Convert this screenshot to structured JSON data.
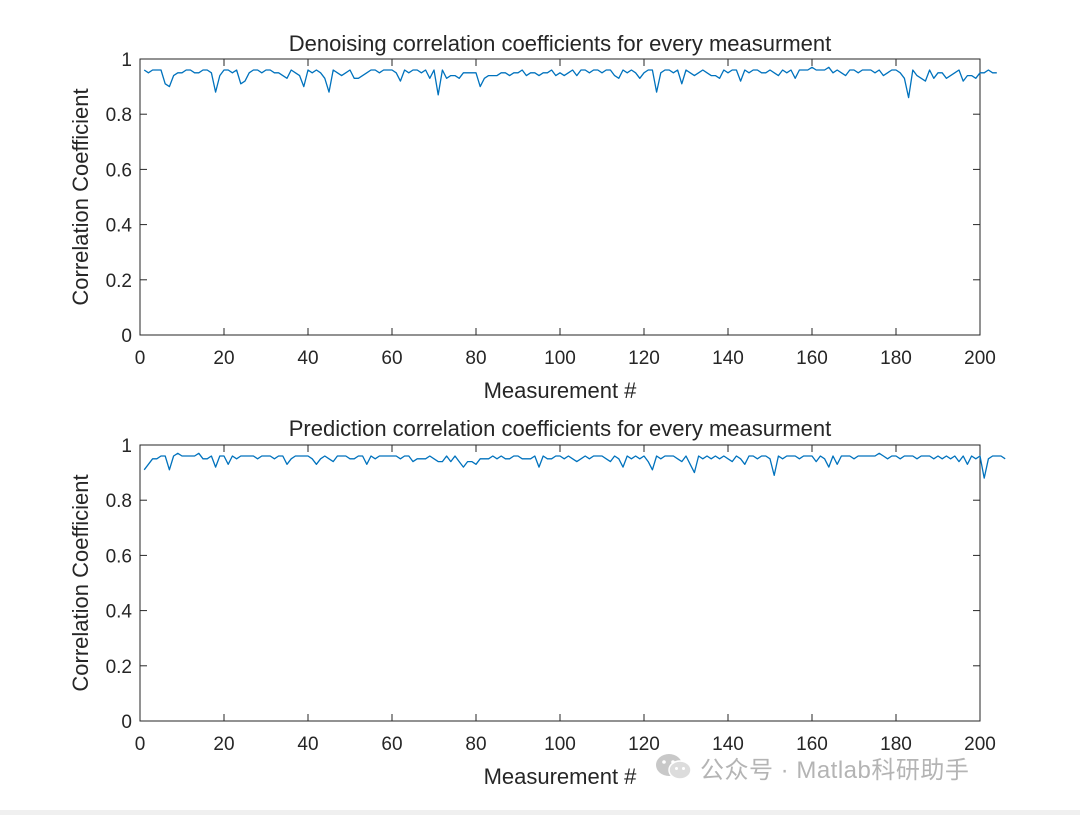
{
  "chart_data": [
    {
      "type": "line",
      "title": "Denoising correlation coefficients for every measurment",
      "xlabel": "Measurement #",
      "ylabel": "Correlation Coefficient",
      "xlim": [
        0,
        200
      ],
      "ylim": [
        0,
        1
      ],
      "xticks": [
        0,
        20,
        40,
        60,
        80,
        100,
        120,
        140,
        160,
        180,
        200
      ],
      "yticks": [
        0,
        0.2,
        0.4,
        0.6,
        0.8,
        1
      ],
      "ytick_labels": [
        "0",
        "0.2",
        "0.4",
        "0.6",
        "0.8",
        "1"
      ],
      "grid": false,
      "series": [
        {
          "name": "Denoising",
          "color": "#0072BD",
          "x_start": 1,
          "values": [
            0.96,
            0.95,
            0.96,
            0.96,
            0.96,
            0.91,
            0.9,
            0.94,
            0.95,
            0.95,
            0.96,
            0.96,
            0.95,
            0.95,
            0.96,
            0.96,
            0.95,
            0.88,
            0.94,
            0.96,
            0.96,
            0.95,
            0.96,
            0.91,
            0.92,
            0.95,
            0.96,
            0.96,
            0.95,
            0.96,
            0.96,
            0.95,
            0.95,
            0.94,
            0.93,
            0.96,
            0.95,
            0.94,
            0.9,
            0.96,
            0.95,
            0.96,
            0.95,
            0.93,
            0.88,
            0.96,
            0.95,
            0.94,
            0.95,
            0.96,
            0.93,
            0.93,
            0.94,
            0.95,
            0.96,
            0.96,
            0.95,
            0.96,
            0.96,
            0.96,
            0.95,
            0.92,
            0.96,
            0.95,
            0.96,
            0.96,
            0.95,
            0.96,
            0.93,
            0.96,
            0.87,
            0.96,
            0.93,
            0.94,
            0.94,
            0.93,
            0.95,
            0.95,
            0.95,
            0.95,
            0.9,
            0.93,
            0.94,
            0.94,
            0.94,
            0.95,
            0.95,
            0.94,
            0.95,
            0.95,
            0.96,
            0.94,
            0.95,
            0.95,
            0.94,
            0.95,
            0.95,
            0.96,
            0.94,
            0.95,
            0.94,
            0.95,
            0.96,
            0.94,
            0.96,
            0.96,
            0.95,
            0.96,
            0.96,
            0.95,
            0.96,
            0.96,
            0.94,
            0.93,
            0.96,
            0.95,
            0.96,
            0.95,
            0.93,
            0.95,
            0.96,
            0.96,
            0.88,
            0.95,
            0.96,
            0.96,
            0.95,
            0.96,
            0.91,
            0.96,
            0.95,
            0.94,
            0.95,
            0.96,
            0.95,
            0.94,
            0.94,
            0.93,
            0.96,
            0.95,
            0.96,
            0.96,
            0.92,
            0.96,
            0.95,
            0.96,
            0.96,
            0.95,
            0.95,
            0.96,
            0.95,
            0.94,
            0.96,
            0.95,
            0.96,
            0.93,
            0.96,
            0.96,
            0.96,
            0.97,
            0.96,
            0.96,
            0.96,
            0.97,
            0.95,
            0.96,
            0.95,
            0.94,
            0.96,
            0.96,
            0.95,
            0.96,
            0.96,
            0.96,
            0.95,
            0.96,
            0.94,
            0.95,
            0.96,
            0.96,
            0.95,
            0.93,
            0.86,
            0.96,
            0.94,
            0.93,
            0.92,
            0.96,
            0.93,
            0.95,
            0.95,
            0.93,
            0.94,
            0.95,
            0.96,
            0.92,
            0.94,
            0.94,
            0.93,
            0.95,
            0.95,
            0.96,
            0.95,
            0.95
          ]
        }
      ]
    },
    {
      "type": "line",
      "title": "Prediction correlation coefficients for every measurment",
      "xlabel": "Measurement #",
      "ylabel": "Correlation Coefficient",
      "xlim": [
        0,
        200
      ],
      "ylim": [
        0,
        1
      ],
      "xticks": [
        0,
        20,
        40,
        60,
        80,
        100,
        120,
        140,
        160,
        180,
        200
      ],
      "yticks": [
        0,
        0.2,
        0.4,
        0.6,
        0.8,
        1
      ],
      "ytick_labels": [
        "0",
        "0.2",
        "0.4",
        "0.6",
        "0.8",
        "1"
      ],
      "grid": false,
      "series": [
        {
          "name": "Prediction",
          "color": "#0072BD",
          "x_start": 1,
          "values": [
            0.91,
            0.93,
            0.95,
            0.95,
            0.96,
            0.96,
            0.91,
            0.96,
            0.97,
            0.96,
            0.96,
            0.96,
            0.96,
            0.97,
            0.95,
            0.95,
            0.96,
            0.92,
            0.96,
            0.96,
            0.93,
            0.96,
            0.95,
            0.96,
            0.96,
            0.96,
            0.96,
            0.95,
            0.96,
            0.96,
            0.96,
            0.95,
            0.96,
            0.96,
            0.93,
            0.95,
            0.96,
            0.96,
            0.96,
            0.96,
            0.95,
            0.93,
            0.95,
            0.96,
            0.95,
            0.94,
            0.96,
            0.96,
            0.96,
            0.95,
            0.95,
            0.96,
            0.96,
            0.93,
            0.96,
            0.95,
            0.96,
            0.96,
            0.96,
            0.96,
            0.96,
            0.95,
            0.96,
            0.96,
            0.94,
            0.95,
            0.95,
            0.95,
            0.96,
            0.95,
            0.94,
            0.94,
            0.96,
            0.94,
            0.96,
            0.94,
            0.92,
            0.94,
            0.94,
            0.93,
            0.95,
            0.95,
            0.95,
            0.96,
            0.95,
            0.96,
            0.95,
            0.95,
            0.96,
            0.96,
            0.95,
            0.95,
            0.95,
            0.96,
            0.92,
            0.96,
            0.95,
            0.95,
            0.96,
            0.96,
            0.95,
            0.96,
            0.95,
            0.94,
            0.95,
            0.96,
            0.95,
            0.96,
            0.96,
            0.96,
            0.95,
            0.94,
            0.96,
            0.95,
            0.92,
            0.96,
            0.95,
            0.96,
            0.95,
            0.96,
            0.94,
            0.91,
            0.96,
            0.95,
            0.96,
            0.96,
            0.96,
            0.95,
            0.94,
            0.96,
            0.93,
            0.9,
            0.96,
            0.95,
            0.96,
            0.95,
            0.96,
            0.95,
            0.96,
            0.95,
            0.94,
            0.96,
            0.95,
            0.93,
            0.96,
            0.96,
            0.95,
            0.96,
            0.96,
            0.95,
            0.89,
            0.96,
            0.95,
            0.96,
            0.96,
            0.96,
            0.95,
            0.96,
            0.96,
            0.96,
            0.94,
            0.96,
            0.95,
            0.92,
            0.96,
            0.93,
            0.96,
            0.96,
            0.96,
            0.95,
            0.96,
            0.96,
            0.96,
            0.96,
            0.96,
            0.97,
            0.96,
            0.95,
            0.96,
            0.96,
            0.95,
            0.96,
            0.96,
            0.96,
            0.95,
            0.96,
            0.96,
            0.96,
            0.95,
            0.96,
            0.95,
            0.96,
            0.95,
            0.96,
            0.94,
            0.96,
            0.93,
            0.96,
            0.95,
            0.96,
            0.88,
            0.95,
            0.96,
            0.96,
            0.96,
            0.95
          ]
        }
      ]
    }
  ],
  "watermark": {
    "text": "公众号 · Matlab科研助手",
    "icon": "wechat-icon"
  }
}
